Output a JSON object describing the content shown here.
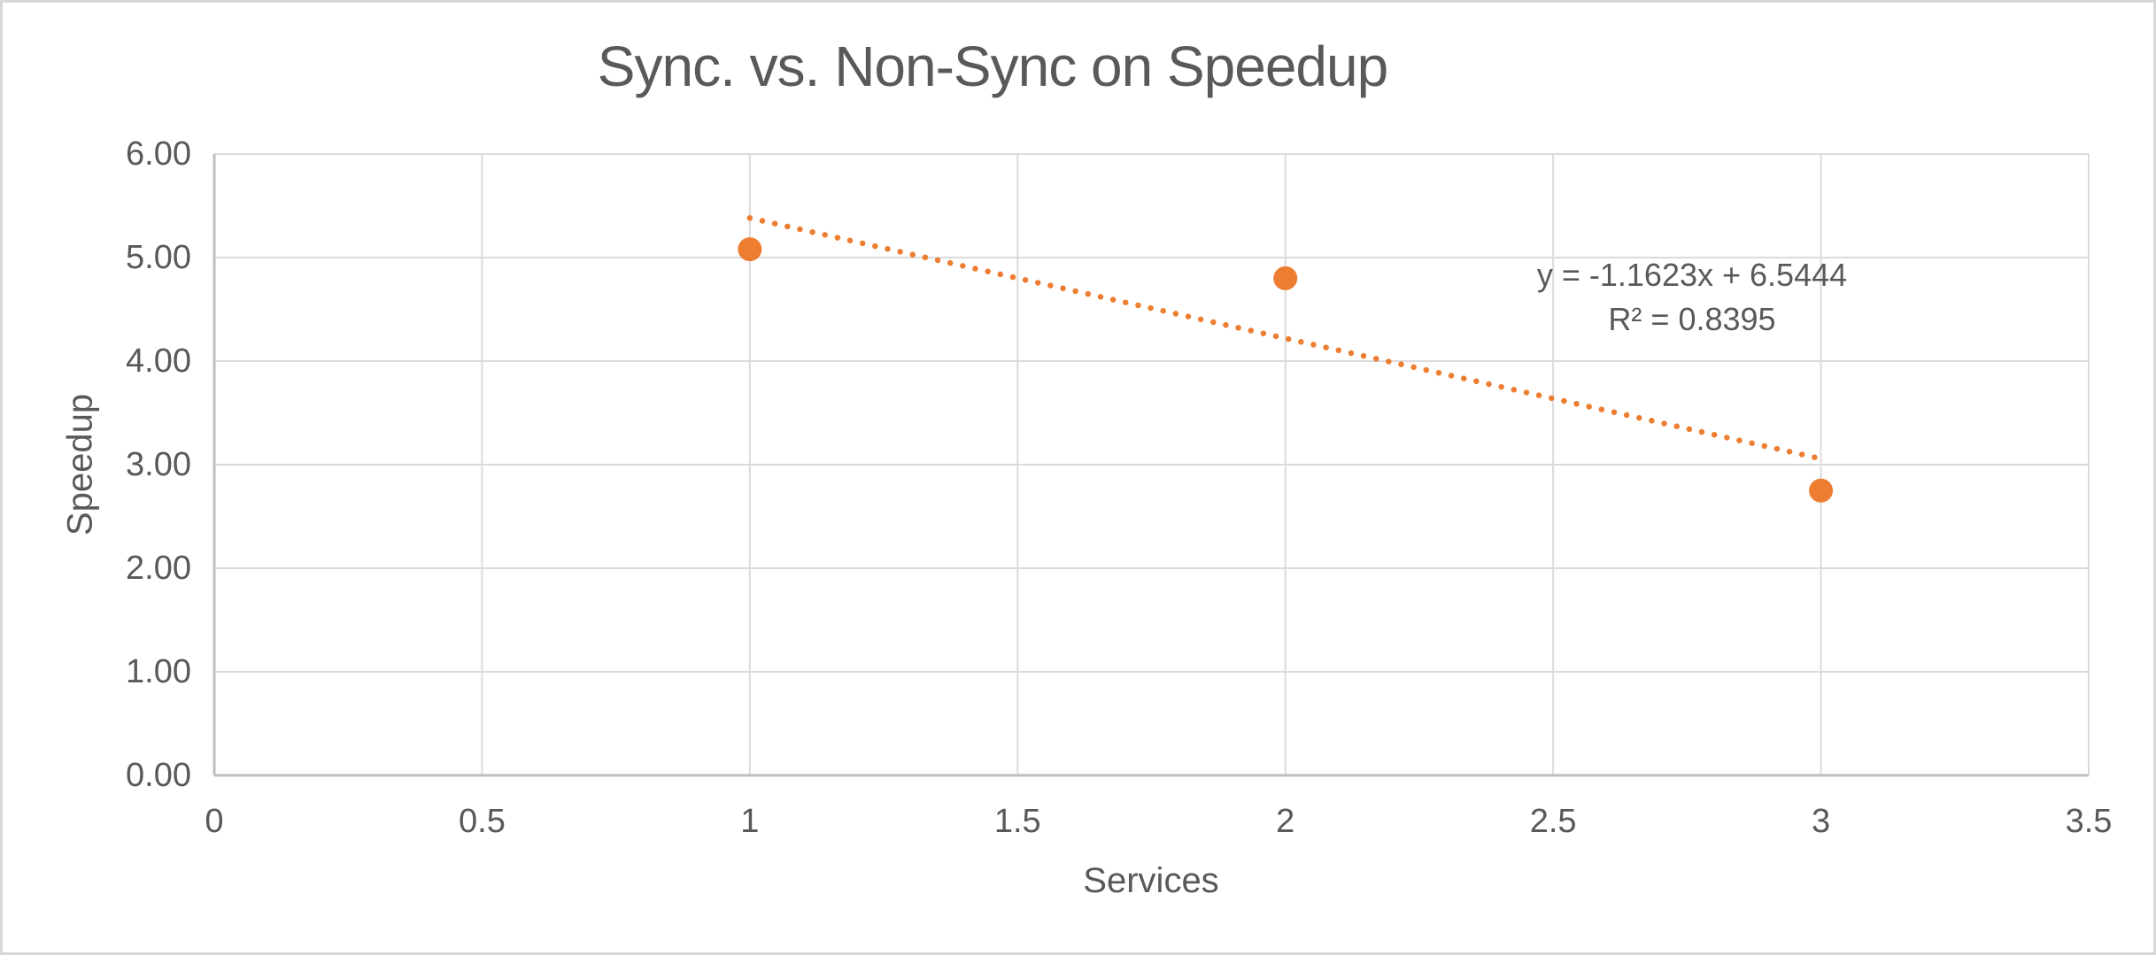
{
  "colors": {
    "accent_orange": "#ED7D31",
    "text_gray": "#595959",
    "gridline": "#DBDBDB",
    "axis_line": "#BFBFBF",
    "canvas_border": "#D7D7D7"
  },
  "chart_data": {
    "type": "scatter",
    "title": "Sync. vs. Non-Sync on Speedup",
    "xlabel": "Services",
    "ylabel": "Speedup",
    "xlim": [
      0,
      3.5
    ],
    "ylim": [
      0,
      6
    ],
    "grid": true,
    "legend": "none",
    "x_tick_values": [
      0,
      0.5,
      1,
      1.5,
      2,
      2.5,
      3,
      3.5
    ],
    "x_tick_labels": [
      "0",
      "0.5",
      "1",
      "1.5",
      "2",
      "2.5",
      "3",
      "3.5"
    ],
    "y_tick_values": [
      0,
      1,
      2,
      3,
      4,
      5,
      6
    ],
    "y_tick_labels": [
      "0.00",
      "1.00",
      "2.00",
      "3.00",
      "4.00",
      "5.00",
      "6.00"
    ],
    "series": [
      {
        "name": "Speedup",
        "marker": "circle",
        "marker_color": "#ED7D31",
        "points": [
          {
            "x": 1,
            "y": 5.08
          },
          {
            "x": 2,
            "y": 4.8
          },
          {
            "x": 3,
            "y": 2.75
          }
        ]
      }
    ],
    "trendline": {
      "slope": -1.1623,
      "intercept": 6.5444,
      "x_start": 1,
      "x_end": 3,
      "style": "dotted",
      "color": "#ED7D31"
    },
    "annotation": {
      "equation": "y = -1.1623x + 6.5444",
      "r_squared": "R² = 0.8395"
    }
  }
}
